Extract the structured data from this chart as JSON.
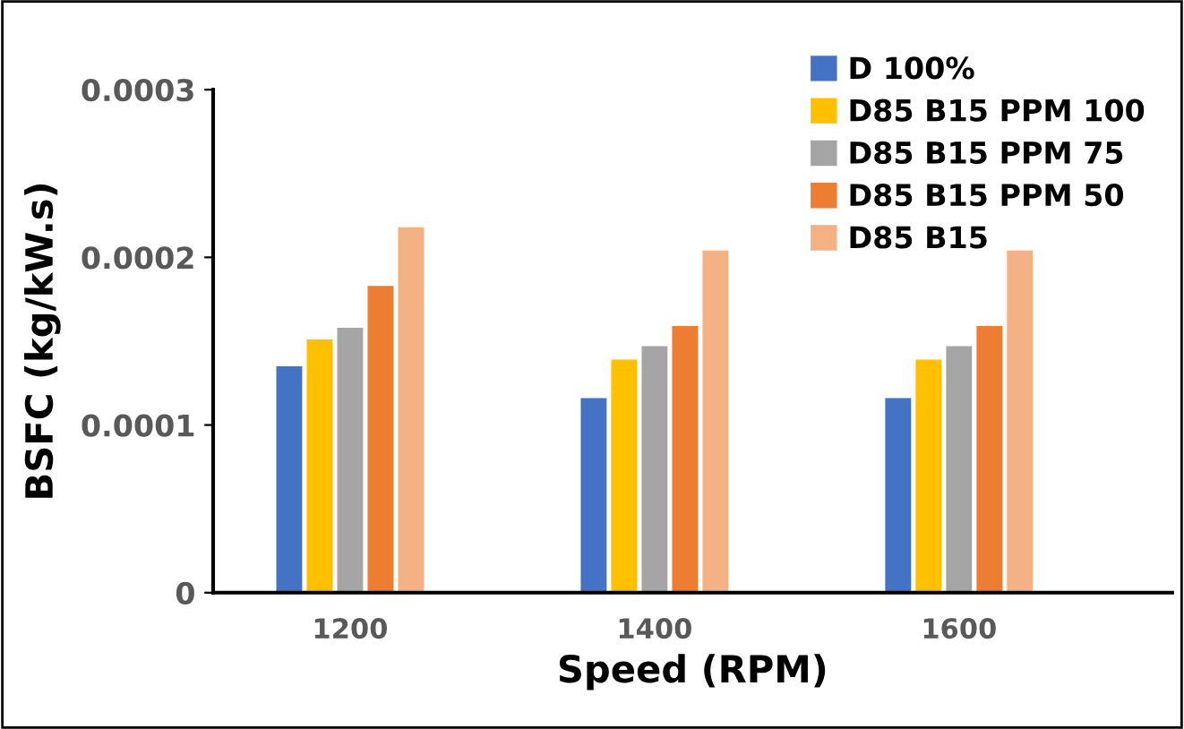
{
  "chart_data": {
    "type": "bar",
    "xlabel": "Speed (RPM)",
    "ylabel": "BSFC (kg/kW.s)",
    "categories": [
      "1200",
      "1400",
      "1600"
    ],
    "series": [
      {
        "name": "D 100%",
        "color": "#4472c4",
        "values": [
          0.000135,
          0.000116,
          0.000116
        ]
      },
      {
        "name": "D85 B15 PPM 100",
        "color": "#ffc000",
        "values": [
          0.000151,
          0.000139,
          0.000139
        ]
      },
      {
        "name": "D85 B15 PPM 75",
        "color": "#a5a5a5",
        "values": [
          0.000158,
          0.000147,
          0.000147
        ]
      },
      {
        "name": "D85 B15 PPM 50",
        "color": "#ed7d31",
        "values": [
          0.000183,
          0.000159,
          0.000159
        ]
      },
      {
        "name": "D85 B15",
        "color": "#f4b183",
        "values": [
          0.000218,
          0.000204,
          0.000204
        ]
      }
    ],
    "ylim": [
      0,
      0.0003
    ],
    "yticks": [
      0,
      0.0001,
      0.0002,
      0.0003
    ],
    "grid": false,
    "legend": "top right"
  }
}
